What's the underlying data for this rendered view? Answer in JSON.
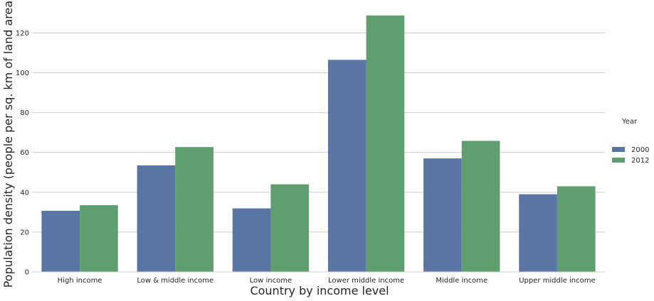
{
  "chart_data": {
    "type": "bar",
    "xlabel": "Country by income level",
    "ylabel": "Population density (people per sq. km of land area)",
    "categories": [
      "High income",
      "Low & middle income",
      "Low income",
      "Lower middle income",
      "Middle income",
      "Upper middle income"
    ],
    "series": [
      {
        "name": "2000",
        "color": "#5975a4",
        "values": [
          30.7,
          53.5,
          31.9,
          106.5,
          57.0,
          39.0
        ]
      },
      {
        "name": "2012",
        "color": "#5f9e6e",
        "values": [
          33.5,
          62.7,
          44.0,
          128.8,
          65.8,
          43.0
        ]
      }
    ],
    "ylim": [
      0,
      133
    ],
    "yticks": [
      0,
      20,
      40,
      60,
      80,
      100,
      120
    ],
    "grid": true,
    "legend": {
      "title": "Year",
      "position": "right"
    }
  }
}
